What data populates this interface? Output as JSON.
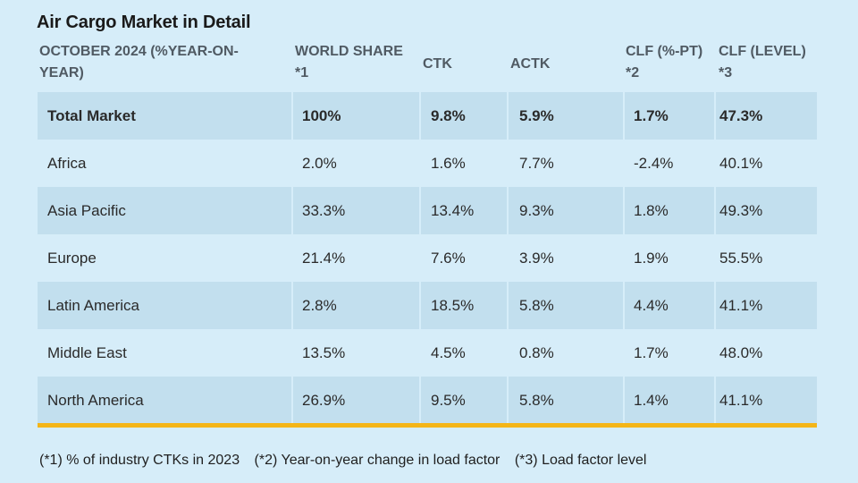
{
  "title": "Air Cargo Market in Detail",
  "headers": {
    "region_l1": "OCTOBER 2024 (%YEAR-ON-",
    "region_l2": "YEAR)",
    "share_l1": "WORLD SHARE",
    "share_l2": "*1",
    "ctk": "CTK",
    "actk": "ACTK",
    "clf_pt_l1": "CLF (%-PT)",
    "clf_pt_l2": "*2",
    "clf_level_l1": "CLF (LEVEL)",
    "clf_level_l2": "*3"
  },
  "rows": [
    {
      "region": "Total Market",
      "share": "100%",
      "ctk": "9.8%",
      "actk": "5.9%",
      "clf_pt": "1.7%",
      "clf_level": "47.3%"
    },
    {
      "region": "Africa",
      "share": "2.0%",
      "ctk": "1.6%",
      "actk": "7.7%",
      "clf_pt": "-2.4%",
      "clf_level": "40.1%"
    },
    {
      "region": "Asia Pacific",
      "share": "33.3%",
      "ctk": "13.4%",
      "actk": "9.3%",
      "clf_pt": "1.8%",
      "clf_level": "49.3%"
    },
    {
      "region": "Europe",
      "share": "21.4%",
      "ctk": "7.6%",
      "actk": "3.9%",
      "clf_pt": "1.9%",
      "clf_level": "55.5%"
    },
    {
      "region": "Latin America",
      "share": "2.8%",
      "ctk": "18.5%",
      "actk": "5.8%",
      "clf_pt": "4.4%",
      "clf_level": "41.1%"
    },
    {
      "region": "Middle East",
      "share": "13.5%",
      "ctk": "4.5%",
      "actk": "0.8%",
      "clf_pt": "1.7%",
      "clf_level": "48.0%"
    },
    {
      "region": "North America",
      "share": "26.9%",
      "ctk": "9.5%",
      "actk": "5.8%",
      "clf_pt": "1.4%",
      "clf_level": "41.1%"
    }
  ],
  "footnotes": {
    "n1": "(*1) % of industry CTKs in 2023",
    "n2": "(*2) Year-on-year change in load factor",
    "n3": "(*3) Load factor level"
  },
  "colors": {
    "background": "#d6edf9",
    "shaded_row": "#c2dfee",
    "accent_rule": "#f4b517"
  }
}
